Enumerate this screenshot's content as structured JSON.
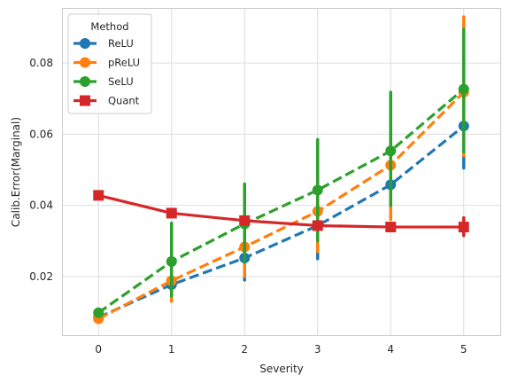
{
  "chart_data": {
    "type": "line",
    "xlabel": "Severity",
    "ylabel": "Calib.Error(Marginal)",
    "x": [
      0,
      1,
      2,
      3,
      4,
      5
    ],
    "xticks": [
      "0",
      "1",
      "2",
      "3",
      "4",
      "5"
    ],
    "ylim": [
      0.0035,
      0.0955
    ],
    "yticks": [
      0.02,
      0.04,
      0.06,
      0.08
    ],
    "ytick_labels": [
      "0.02",
      "0.04",
      "0.06",
      "0.08"
    ],
    "grid": true,
    "legend": {
      "title": "Method",
      "placement": "top-left"
    },
    "series": [
      {
        "name": "ReLU",
        "color": "#1f77b4",
        "marker": "circle",
        "dashed": true,
        "values": [
          0.0085,
          0.0177,
          0.0252,
          0.0343,
          0.0458,
          0.0623
        ],
        "ci_low": [
          0.0085,
          0.0155,
          0.019,
          0.025,
          0.037,
          0.0505
        ],
        "ci_high": [
          0.0085,
          0.0195,
          0.0315,
          0.043,
          0.055,
          0.074
        ]
      },
      {
        "name": "pReLU",
        "color": "#ff7f0e",
        "marker": "circle",
        "dashed": true,
        "values": [
          0.0081,
          0.0188,
          0.0283,
          0.0383,
          0.0513,
          0.0718
        ],
        "ci_low": [
          0.0081,
          0.013,
          0.02,
          0.027,
          0.036,
          0.054
        ],
        "ci_high": [
          0.0081,
          0.022,
          0.035,
          0.05,
          0.065,
          0.093
        ]
      },
      {
        "name": "SeLU",
        "color": "#2ca02c",
        "marker": "circle",
        "dashed": true,
        "values": [
          0.0098,
          0.0242,
          0.0348,
          0.0443,
          0.0553,
          0.0727
        ],
        "ci_low": [
          0.0098,
          0.0145,
          0.024,
          0.03,
          0.04,
          0.055
        ],
        "ci_high": [
          0.0098,
          0.035,
          0.046,
          0.0585,
          0.0718,
          0.0895
        ]
      },
      {
        "name": "Quant",
        "color": "#d62728",
        "marker": "square",
        "dashed": false,
        "values": [
          0.0428,
          0.0378,
          0.0357,
          0.0343,
          0.0339,
          0.0339
        ],
        "ci_low": [
          0.0428,
          0.0372,
          0.0352,
          0.0338,
          0.0335,
          0.0315
        ],
        "ci_high": [
          0.0428,
          0.0384,
          0.0362,
          0.0348,
          0.0343,
          0.0365
        ]
      }
    ]
  }
}
